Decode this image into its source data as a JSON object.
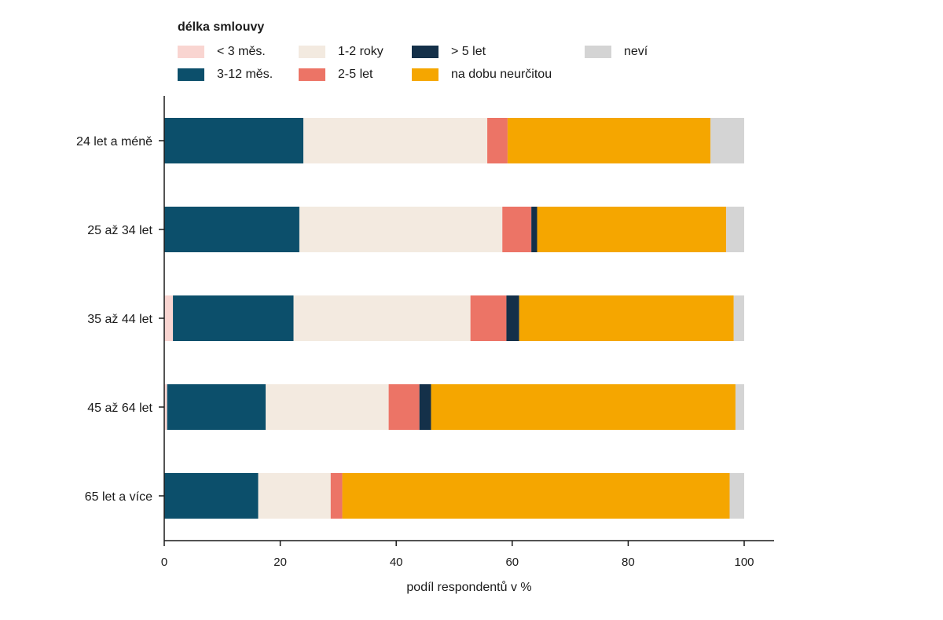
{
  "chart_data": {
    "type": "bar",
    "orientation": "horizontal",
    "stacked": true,
    "title": "",
    "xlabel": "podíl respondentů v %",
    "ylabel": "",
    "xlim": [
      0,
      100
    ],
    "xticks": [
      "0",
      "20",
      "40",
      "60",
      "80",
      "100"
    ],
    "legend_title": "délka smlouvy",
    "legend_position": "top-left",
    "grid": false,
    "categories": [
      "24 let a méně",
      "25 až 34 let",
      "35 až 44 let",
      "45 až 64 let",
      "65 let a více"
    ],
    "series": [
      {
        "name": "< 3 měs.",
        "color": "#f9d5d1",
        "values": [
          0.0,
          0.0,
          1.5,
          0.5,
          0.0
        ]
      },
      {
        "name": "3-12 měs.",
        "color": "#0c4f6b",
        "values": [
          24.0,
          23.3,
          20.8,
          17.0,
          16.2
        ]
      },
      {
        "name": "1-2 roky",
        "color": "#f3eae0",
        "values": [
          31.7,
          35.0,
          30.5,
          21.2,
          12.5
        ]
      },
      {
        "name": "2-5 let",
        "color": "#ec7466",
        "values": [
          3.5,
          5.0,
          6.2,
          5.3,
          2.0
        ]
      },
      {
        "name": "> 5 let",
        "color": "#143049",
        "values": [
          0.0,
          1.0,
          2.2,
          2.0,
          0.0
        ]
      },
      {
        "name": "na dobu neurčitou",
        "color": "#f5a600",
        "values": [
          35.0,
          32.6,
          37.0,
          52.5,
          66.8
        ]
      },
      {
        "name": "neví",
        "color": "#d4d4d4",
        "values": [
          5.8,
          3.1,
          1.8,
          1.5,
          2.5
        ]
      }
    ]
  }
}
